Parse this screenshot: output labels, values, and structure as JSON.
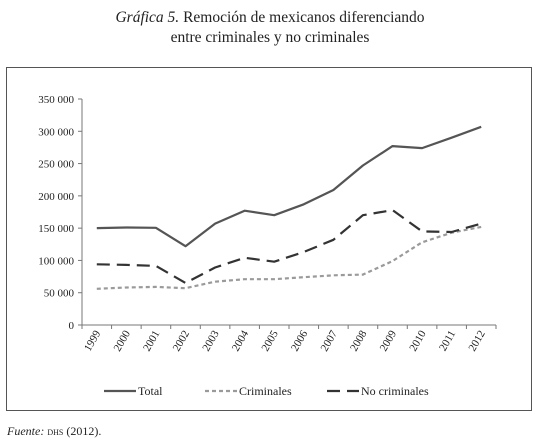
{
  "header": {
    "title_lead": "Gráfica 5.",
    "title_rest": " Remoción de mexicanos diferenciando",
    "title_line2": "entre criminales y no criminales"
  },
  "footer": {
    "source_label": "Fuente:",
    "source_org": "dhs",
    "source_year": " (2012)."
  },
  "chart_data": {
    "type": "line",
    "title": "Gráfica 5. Remoción de mexicanos diferenciando entre criminales y no criminales",
    "xlabel": "",
    "ylabel": "",
    "categories": [
      "1999",
      "2000",
      "2001",
      "2002",
      "2003",
      "2004",
      "2005",
      "2006",
      "2007",
      "2008",
      "2009",
      "2010",
      "2011",
      "2012"
    ],
    "ylim": [
      0,
      350000
    ],
    "yticks": [
      0,
      50000,
      100000,
      150000,
      200000,
      250000,
      300000,
      350000
    ],
    "ytick_labels": [
      "0",
      "50 000",
      "100 000",
      "150 000",
      "200 000",
      "250 000",
      "300 000",
      "350 000"
    ],
    "grid": false,
    "legend_position": "bottom",
    "series": [
      {
        "name": "Total",
        "style": "solid",
        "color": "#555555",
        "values": [
          150000,
          151000,
          150500,
          122000,
          157000,
          177000,
          170000,
          187000,
          209000,
          247000,
          277000,
          274000,
          290000,
          307000
        ]
      },
      {
        "name": "Criminales",
        "style": "dotted",
        "color": "#9a9a9a",
        "values": [
          56000,
          58000,
          59000,
          57000,
          67000,
          71000,
          71000,
          74000,
          77000,
          78000,
          99000,
          128000,
          143000,
          152000
        ]
      },
      {
        "name": "No criminales",
        "style": "dashed",
        "color": "#333333",
        "values": [
          94000,
          93000,
          91500,
          65000,
          89000,
          104000,
          98000,
          113000,
          132000,
          170000,
          178000,
          145000,
          144000,
          157000
        ]
      }
    ]
  }
}
